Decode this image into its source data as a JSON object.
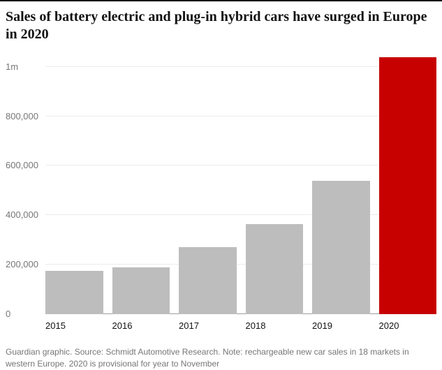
{
  "header": {
    "title": "Sales of battery electric and plug-in hybrid cars have surged in Europe in 2020"
  },
  "footer": {
    "credit": "Guardian graphic. Source: Schmidt Automotive Research. Note: rechargeable new car sales in 18 markets in western Europe. 2020 is provisional for year to November"
  },
  "chart_data": {
    "type": "bar",
    "title": "Sales of battery electric and plug-in hybrid cars have surged in Europe in 2020",
    "categories": [
      "2015",
      "2016",
      "2017",
      "2018",
      "2019",
      "2020"
    ],
    "values": [
      175000,
      190000,
      270000,
      365000,
      540000,
      1040000
    ],
    "xlabel": "",
    "ylabel": "",
    "ylim": [
      0,
      1050000
    ],
    "yticks": [
      {
        "label": "0",
        "value": 0
      },
      {
        "label": "200,000",
        "value": 200000
      },
      {
        "label": "400,000",
        "value": 400000
      },
      {
        "label": "600,000",
        "value": 600000
      },
      {
        "label": "800,000",
        "value": 800000
      },
      {
        "label": "1m",
        "value": 1000000
      }
    ],
    "grid": true,
    "legend": "none",
    "bar_color": "#bdbdbd",
    "highlight_category": "2020",
    "highlight_color": "#c70000",
    "grid_color": "#ececec",
    "axis_color": "#9e9e9e"
  }
}
